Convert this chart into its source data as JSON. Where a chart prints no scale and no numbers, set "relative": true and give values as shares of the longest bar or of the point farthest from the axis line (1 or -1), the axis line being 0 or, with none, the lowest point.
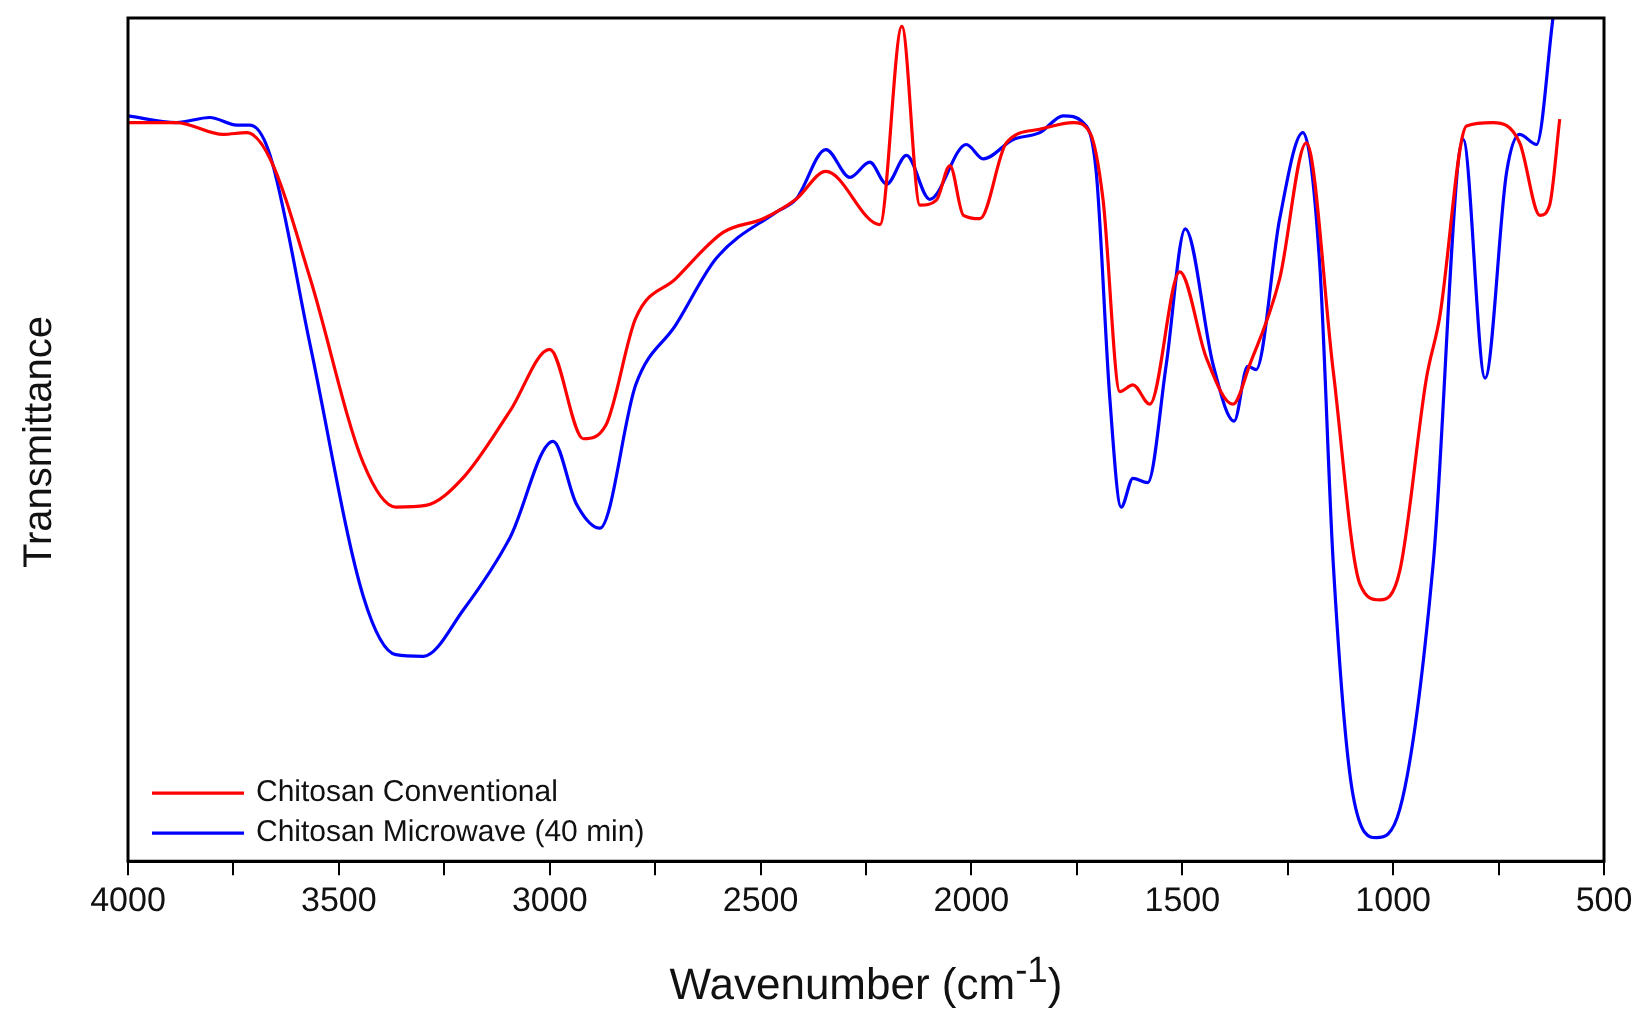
{
  "chart_data": {
    "type": "line",
    "relative": true,
    "xlabel": "Wavenumber (cm$^{-1}$)",
    "ylabel": "Transmittance",
    "xlim": [
      4000,
      500
    ],
    "xticks": [
      4000,
      {
        "value": 3750,
        "label": null
      },
      3500,
      {
        "value": 3250,
        "label": null
      },
      3000,
      {
        "value": 2750,
        "label": null
      },
      2500,
      {
        "value": 2250,
        "label": null
      },
      2000,
      {
        "value": 1750,
        "label": null
      },
      1500,
      {
        "value": 1250,
        "label": null
      },
      1000,
      {
        "value": 750,
        "label": null
      },
      500
    ],
    "grid": false,
    "legend": "bottom left",
    "marker": "none",
    "line_style": "solid",
    "series": [
      {
        "name": "Chitosan Conventional",
        "color": "#ff0000",
        "x": [
          4000,
          3885,
          3774,
          3719,
          3663,
          3568,
          3442,
          3365,
          3294,
          3205,
          3094,
          3000,
          2920,
          2867,
          2796,
          2701,
          2588,
          2494,
          2416,
          2345,
          2217,
          2165,
          2122,
          2083,
          2051,
          2019,
          1980,
          1917,
          1838,
          1759,
          1719,
          1688,
          1648,
          1617,
          1577,
          1506,
          1443,
          1380,
          1340,
          1269,
          1206,
          1142,
          1079,
          1032,
          984,
          921,
          890,
          826,
          763,
          700,
          652,
          629,
          605
        ],
        "values": [
          0.876,
          0.876,
          0.862,
          0.864,
          0.833,
          0.691,
          0.472,
          0.42,
          0.422,
          0.455,
          0.534,
          0.607,
          0.501,
          0.517,
          0.644,
          0.691,
          0.746,
          0.762,
          0.785,
          0.818,
          0.755,
          0.99,
          0.778,
          0.784,
          0.825,
          0.766,
          0.762,
          0.852,
          0.868,
          0.876,
          0.864,
          0.785,
          0.557,
          0.565,
          0.542,
          0.699,
          0.597,
          0.542,
          0.589,
          0.691,
          0.852,
          0.581,
          0.329,
          0.31,
          0.345,
          0.573,
          0.644,
          0.872,
          0.876,
          0.852,
          0.766,
          0.778,
          0.88
        ]
      },
      {
        "name": "Chitosan Microwave (40 min)",
        "color": "#0000ff",
        "x": [
          4000,
          3885,
          3806,
          3742,
          3711,
          3663,
          3568,
          3442,
          3365,
          3300,
          3205,
          3094,
          2992,
          2937,
          2881,
          2796,
          2701,
          2605,
          2462,
          2416,
          2345,
          2288,
          2241,
          2201,
          2154,
          2099,
          2012,
          1972,
          1901,
          1838,
          1782,
          1735,
          1704,
          1672,
          1645,
          1617,
          1582,
          1538,
          1493,
          1427,
          1377,
          1345,
          1325,
          1269,
          1214,
          1174,
          1142,
          1095,
          1040,
          984,
          905,
          834,
          782,
          731,
          700,
          660,
          621
        ],
        "values": [
          0.884,
          0.876,
          0.882,
          0.873,
          0.873,
          0.837,
          0.612,
          0.314,
          0.245,
          0.243,
          0.298,
          0.384,
          0.498,
          0.424,
          0.395,
          0.565,
          0.636,
          0.715,
          0.77,
          0.785,
          0.844,
          0.811,
          0.829,
          0.803,
          0.837,
          0.785,
          0.85,
          0.833,
          0.856,
          0.864,
          0.884,
          0.876,
          0.817,
          0.55,
          0.42,
          0.454,
          0.449,
          0.589,
          0.75,
          0.589,
          0.522,
          0.587,
          0.583,
          0.762,
          0.864,
          0.707,
          0.353,
          0.078,
          0.028,
          0.062,
          0.353,
          0.856,
          0.573,
          0.817,
          0.862,
          0.85,
          1
        ]
      }
    ]
  }
}
